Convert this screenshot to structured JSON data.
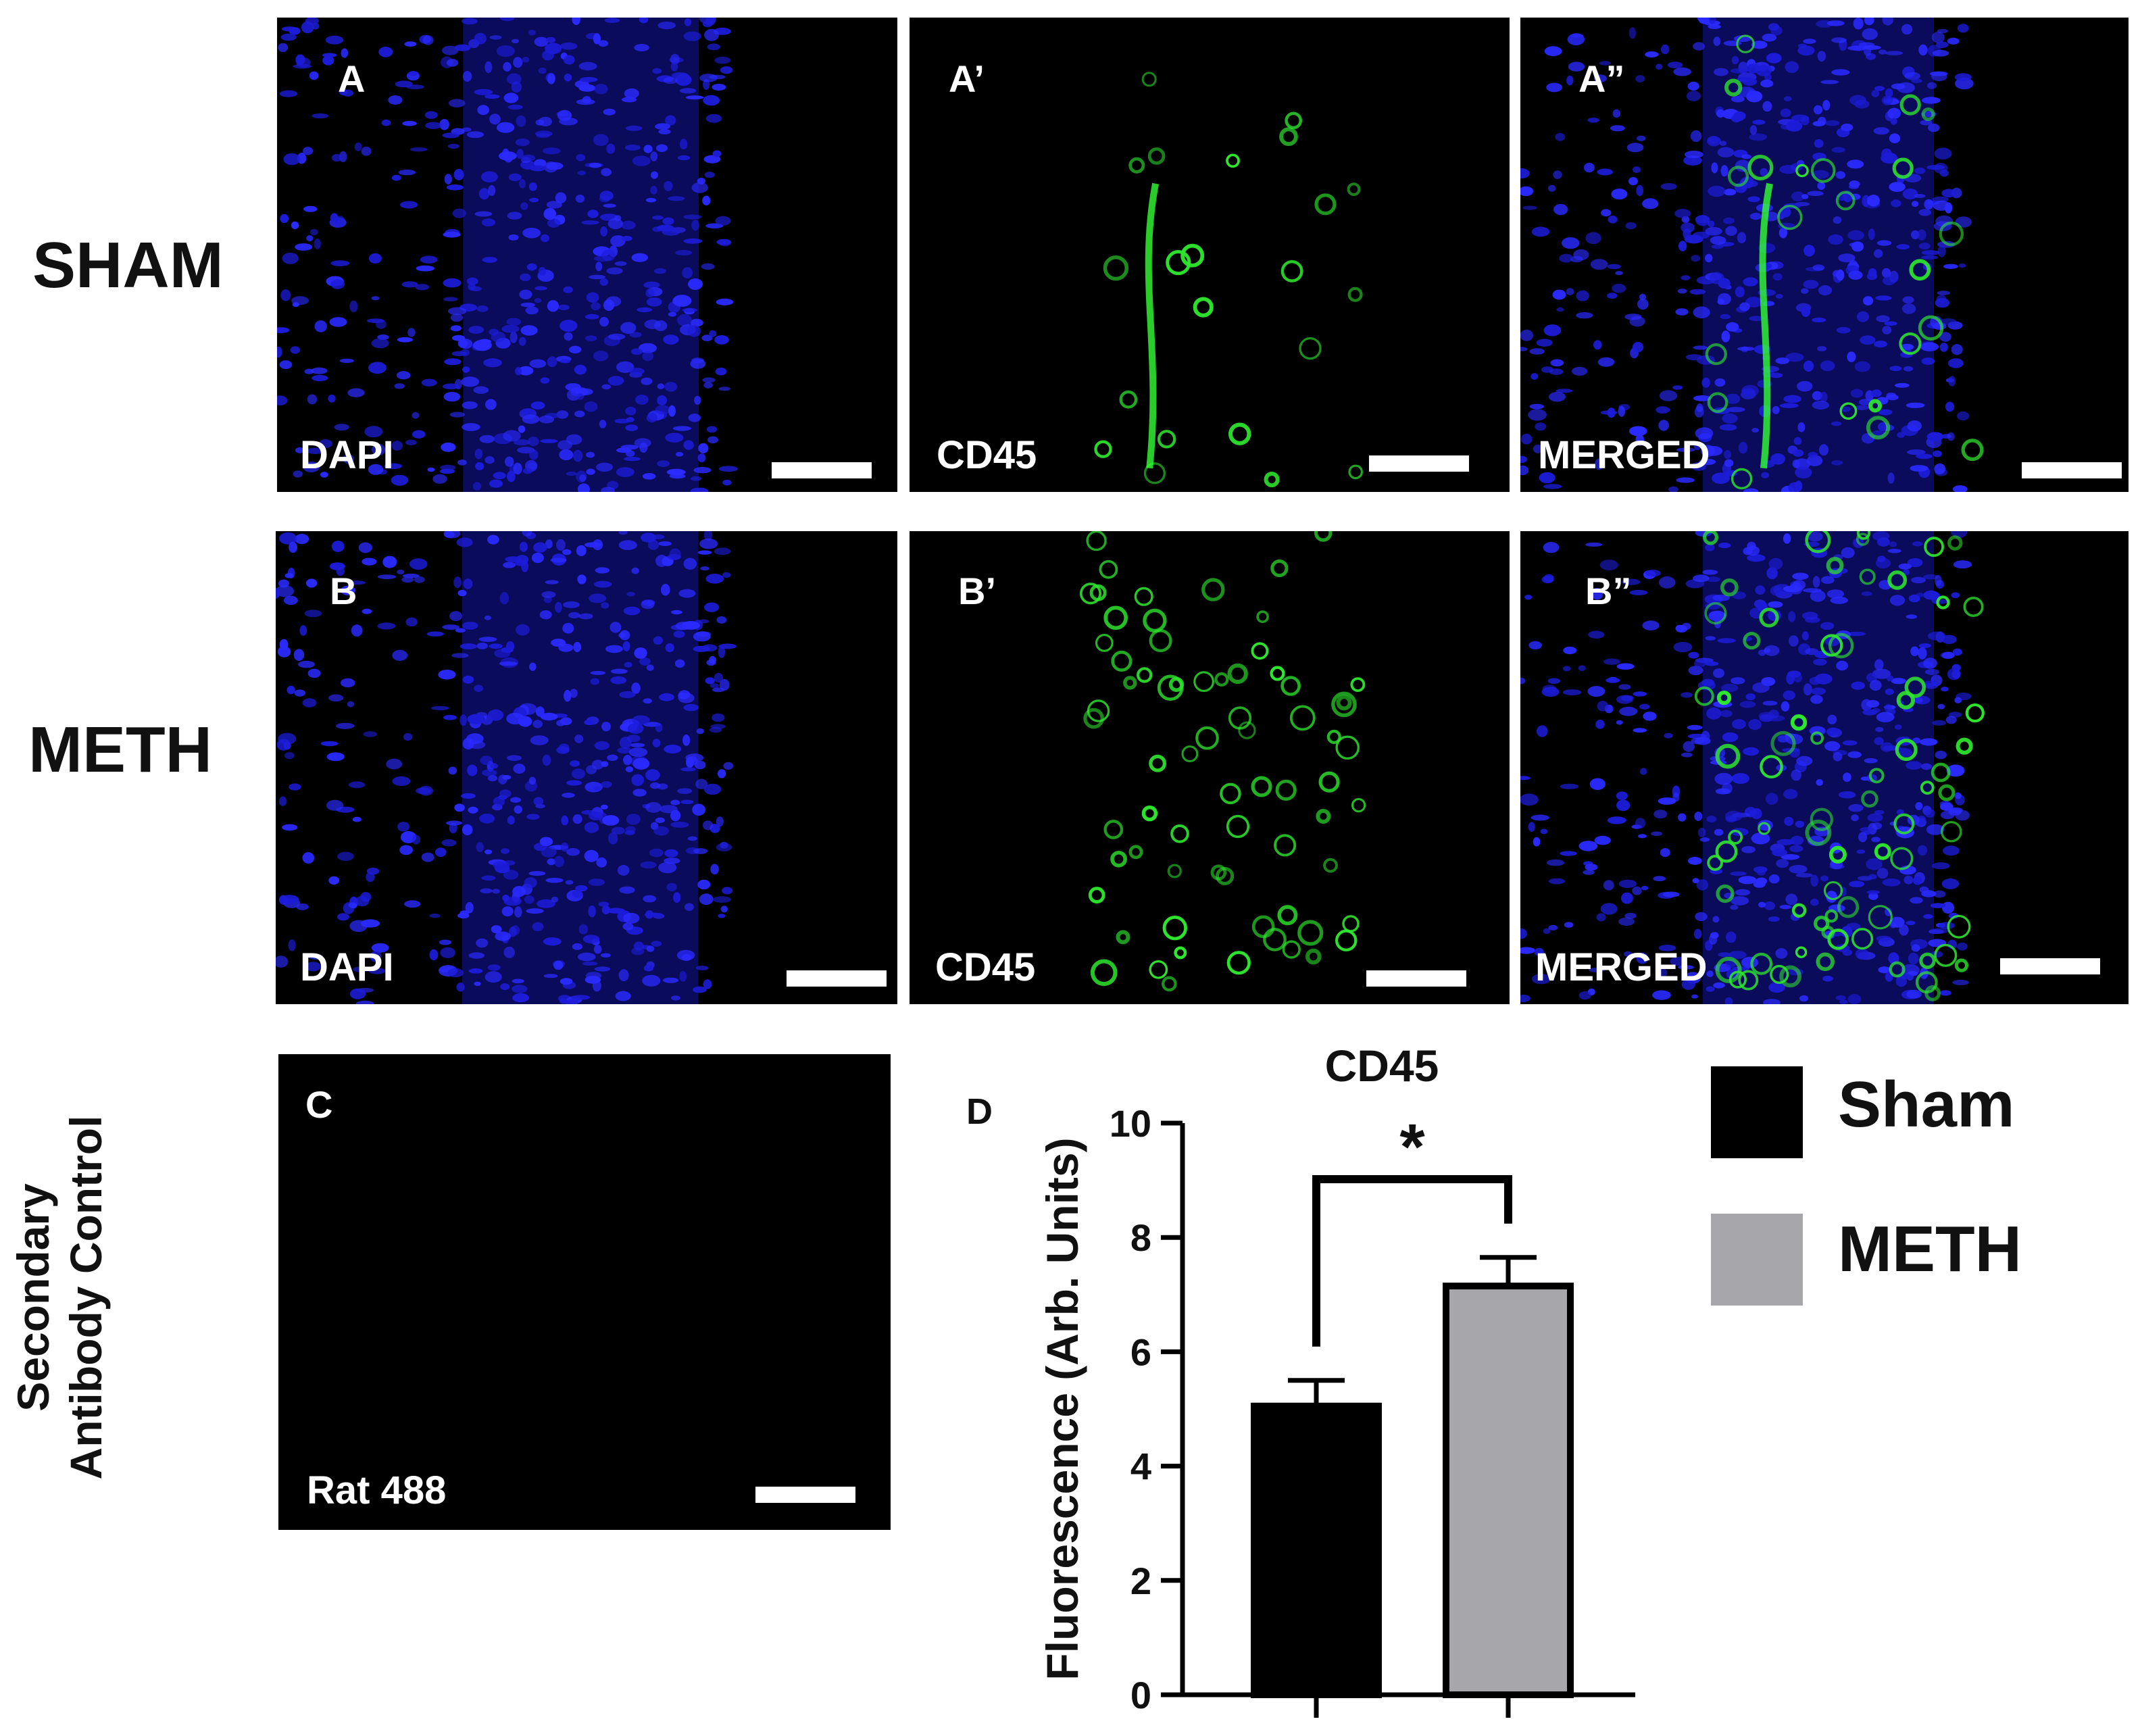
{
  "rows": {
    "sham_label": "SHAM",
    "meth_label": "METH"
  },
  "panels": [
    {
      "id": "A",
      "label": "A",
      "stain": "DAPI",
      "channel": "blue"
    },
    {
      "id": "A1",
      "label": "A’",
      "stain": "CD45",
      "channel": "green"
    },
    {
      "id": "A2",
      "label": "A”",
      "stain": "MERGED",
      "channel": "merged"
    },
    {
      "id": "B",
      "label": "B",
      "stain": "DAPI",
      "channel": "blue"
    },
    {
      "id": "B1",
      "label": "B’",
      "stain": "CD45",
      "channel": "green"
    },
    {
      "id": "B2",
      "label": "B”",
      "stain": "MERGED",
      "channel": "merged"
    },
    {
      "id": "C",
      "label": "C",
      "stain": "Rat 488",
      "channel": "none"
    }
  ],
  "control_label": {
    "line1": "Secondary",
    "line2": "Antibody Control"
  },
  "panel_d_label": "D",
  "chart_data": {
    "type": "bar",
    "title": "CD45",
    "ylabel": "Fluorescence (Arb. Units)",
    "xlabel": "",
    "categories": [
      "Sham",
      "METH"
    ],
    "values": [
      5.05,
      7.15
    ],
    "errors": [
      0.45,
      0.5
    ],
    "ylim": [
      0,
      10
    ],
    "yticks": [
      0,
      2,
      4,
      6,
      8,
      10
    ],
    "significance": "*",
    "colors": [
      "#000000",
      "#a7a6aa"
    ],
    "legend": [
      {
        "name": "Sham",
        "color": "#000000"
      },
      {
        "name": "METH",
        "color": "#a7a6aa"
      }
    ],
    "legend_position": "right",
    "grid": false
  }
}
